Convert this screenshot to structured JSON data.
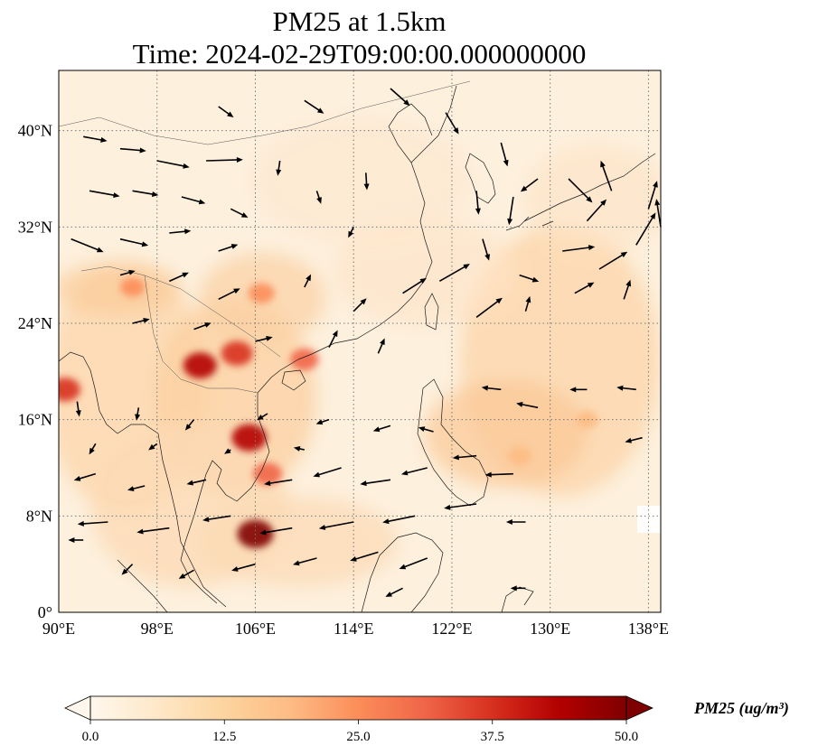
{
  "title": {
    "line1": "PM25 at 1.5km",
    "line2": "Time: 2024-02-29T09:00:00.000000000"
  },
  "map": {
    "projection": "PlateCarree",
    "lon_range": [
      90,
      139
    ],
    "lat_range": [
      0,
      45
    ],
    "grid": "dotted",
    "lon_ticks": [
      {
        "value": 90,
        "label": "90°E"
      },
      {
        "value": 98,
        "label": "98°E"
      },
      {
        "value": 106,
        "label": "106°E"
      },
      {
        "value": 114,
        "label": "114°E"
      },
      {
        "value": 122,
        "label": "122°E"
      },
      {
        "value": 130,
        "label": "130°E"
      },
      {
        "value": 138,
        "label": "138°E"
      }
    ],
    "lat_ticks": [
      {
        "value": 0,
        "label": "0°"
      },
      {
        "value": 8,
        "label": "8°N"
      },
      {
        "value": 16,
        "label": "16°N"
      },
      {
        "value": 24,
        "label": "24°N"
      },
      {
        "value": 32,
        "label": "32°N"
      },
      {
        "value": 40,
        "label": "40°N"
      }
    ],
    "hotspots": [
      {
        "lon": 106,
        "lat": 6.5,
        "level": 48
      },
      {
        "lon": 105.5,
        "lat": 14.5,
        "level": 45
      },
      {
        "lon": 101.5,
        "lat": 20.5,
        "level": 42
      },
      {
        "lon": 104.5,
        "lat": 21.5,
        "level": 38
      },
      {
        "lon": 90.5,
        "lat": 18.5,
        "level": 36
      },
      {
        "lon": 107,
        "lat": 11.5,
        "level": 32
      },
      {
        "lon": 110,
        "lat": 21,
        "level": 30
      },
      {
        "lon": 106.5,
        "lat": 26.5,
        "level": 26
      },
      {
        "lon": 96,
        "lat": 27,
        "level": 22
      },
      {
        "lon": 127.5,
        "lat": 13,
        "level": 20
      },
      {
        "lon": 133,
        "lat": 16,
        "level": 18
      }
    ],
    "wind_vectors": [
      {
        "lon": 92,
        "lat": 39.5,
        "u": 2.2,
        "v": -0.4
      },
      {
        "lon": 95,
        "lat": 38.5,
        "u": 2.4,
        "v": -0.2
      },
      {
        "lon": 98,
        "lat": 37.5,
        "u": 3.0,
        "v": -0.6
      },
      {
        "lon": 102,
        "lat": 37.5,
        "u": 3.4,
        "v": 0.1
      },
      {
        "lon": 92.5,
        "lat": 35,
        "u": 2.8,
        "v": -0.5
      },
      {
        "lon": 96,
        "lat": 35,
        "u": 2.4,
        "v": -0.4
      },
      {
        "lon": 100,
        "lat": 34.5,
        "u": 2.2,
        "v": -0.6
      },
      {
        "lon": 104,
        "lat": 33.5,
        "u": 1.6,
        "v": -0.8
      },
      {
        "lon": 91,
        "lat": 31,
        "u": 3.0,
        "v": -1.2
      },
      {
        "lon": 95,
        "lat": 31,
        "u": 2.6,
        "v": -0.6
      },
      {
        "lon": 99,
        "lat": 31.5,
        "u": 2.0,
        "v": 0.2
      },
      {
        "lon": 103,
        "lat": 30,
        "u": 1.8,
        "v": 0.6
      },
      {
        "lon": 108,
        "lat": 37.5,
        "u": -0.2,
        "v": -1.4
      },
      {
        "lon": 111,
        "lat": 35,
        "u": 0.4,
        "v": -1.2
      },
      {
        "lon": 115,
        "lat": 36.5,
        "u": 0.1,
        "v": -1.6
      },
      {
        "lon": 114,
        "lat": 32,
        "u": -0.5,
        "v": -1.0
      },
      {
        "lon": 103,
        "lat": 42,
        "u": 1.4,
        "v": -1.0
      },
      {
        "lon": 110,
        "lat": 42.5,
        "u": 1.8,
        "v": -1.2
      },
      {
        "lon": 117,
        "lat": 43.5,
        "u": 1.8,
        "v": -1.6
      },
      {
        "lon": 121.5,
        "lat": 41.5,
        "u": 1.2,
        "v": -2.0
      },
      {
        "lon": 126,
        "lat": 39,
        "u": 0.6,
        "v": -2.2
      },
      {
        "lon": 124,
        "lat": 35,
        "u": 0.2,
        "v": -2.2
      },
      {
        "lon": 127,
        "lat": 34.5,
        "u": -0.4,
        "v": -2.6
      },
      {
        "lon": 129,
        "lat": 36,
        "u": -1.6,
        "v": -1.2
      },
      {
        "lon": 124.5,
        "lat": 31,
        "u": 0.6,
        "v": -2.0
      },
      {
        "lon": 127.5,
        "lat": 28,
        "u": 1.8,
        "v": -0.6
      },
      {
        "lon": 131,
        "lat": 30,
        "u": 3.0,
        "v": 0.4
      },
      {
        "lon": 133,
        "lat": 32.5,
        "u": 1.8,
        "v": 2.0
      },
      {
        "lon": 134,
        "lat": 28.5,
        "u": 2.6,
        "v": 1.6
      },
      {
        "lon": 137,
        "lat": 30.5,
        "u": 1.8,
        "v": 3.0
      },
      {
        "lon": 139,
        "lat": 32,
        "u": -0.4,
        "v": 2.6
      },
      {
        "lon": 131.5,
        "lat": 36,
        "u": 2.2,
        "v": -2.2
      },
      {
        "lon": 135,
        "lat": 35,
        "u": -1.0,
        "v": 2.8
      },
      {
        "lon": 138,
        "lat": 33.5,
        "u": 0.8,
        "v": 2.6
      },
      {
        "lon": 95,
        "lat": 28,
        "u": 1.4,
        "v": 0.4
      },
      {
        "lon": 99,
        "lat": 27.5,
        "u": 1.8,
        "v": 0.8
      },
      {
        "lon": 103,
        "lat": 26,
        "u": 2.0,
        "v": 1.0
      },
      {
        "lon": 96,
        "lat": 24,
        "u": 1.6,
        "v": 0.4
      },
      {
        "lon": 101,
        "lat": 23.5,
        "u": 1.6,
        "v": 0.6
      },
      {
        "lon": 110,
        "lat": 27,
        "u": 0.6,
        "v": 1.2
      },
      {
        "lon": 114,
        "lat": 25,
        "u": 1.2,
        "v": 1.2
      },
      {
        "lon": 118,
        "lat": 26.5,
        "u": 2.2,
        "v": 1.4
      },
      {
        "lon": 121,
        "lat": 27.5,
        "u": 2.8,
        "v": 1.6
      },
      {
        "lon": 124,
        "lat": 24.5,
        "u": 2.4,
        "v": 1.8
      },
      {
        "lon": 128,
        "lat": 25,
        "u": 0.4,
        "v": 1.4
      },
      {
        "lon": 132,
        "lat": 26.5,
        "u": 1.8,
        "v": 1.0
      },
      {
        "lon": 136,
        "lat": 26,
        "u": 0.6,
        "v": 1.8
      },
      {
        "lon": 112,
        "lat": 22,
        "u": 0.8,
        "v": 1.6
      },
      {
        "lon": 116,
        "lat": 21.5,
        "u": 0.6,
        "v": 1.4
      },
      {
        "lon": 106,
        "lat": 22.5,
        "u": 1.6,
        "v": 0.4
      },
      {
        "lon": 126,
        "lat": 18.5,
        "u": -1.8,
        "v": 0.2
      },
      {
        "lon": 129,
        "lat": 17,
        "u": -2.0,
        "v": 0.4
      },
      {
        "lon": 133,
        "lat": 18.5,
        "u": -1.6,
        "v": 0
      },
      {
        "lon": 137,
        "lat": 18.5,
        "u": -1.8,
        "v": 0.2
      },
      {
        "lon": 137.5,
        "lat": 14.5,
        "u": -1.6,
        "v": -0.4
      },
      {
        "lon": 124,
        "lat": 13,
        "u": -2.2,
        "v": -0.2
      },
      {
        "lon": 127,
        "lat": 11.5,
        "u": -2.6,
        "v": -0.1
      },
      {
        "lon": 120,
        "lat": 12,
        "u": -2.4,
        "v": -0.6
      },
      {
        "lon": 117,
        "lat": 11,
        "u": -2.8,
        "v": -0.4
      },
      {
        "lon": 113,
        "lat": 12,
        "u": -2.6,
        "v": -0.8
      },
      {
        "lon": 109,
        "lat": 11,
        "u": -2.6,
        "v": -0.4
      },
      {
        "lon": 124,
        "lat": 9,
        "u": -3.0,
        "v": -0.4
      },
      {
        "lon": 119,
        "lat": 8,
        "u": -3.0,
        "v": -0.6
      },
      {
        "lon": 114,
        "lat": 7.5,
        "u": -3.2,
        "v": -0.6
      },
      {
        "lon": 109,
        "lat": 7,
        "u": -3.0,
        "v": -0.5
      },
      {
        "lon": 104,
        "lat": 8,
        "u": -2.6,
        "v": -0.4
      },
      {
        "lon": 99,
        "lat": 7,
        "u": -3.0,
        "v": -0.4
      },
      {
        "lon": 94,
        "lat": 7.5,
        "u": -2.8,
        "v": -0.2
      },
      {
        "lon": 93,
        "lat": 11.5,
        "u": -2.0,
        "v": -0.6
      },
      {
        "lon": 97,
        "lat": 10.5,
        "u": -1.6,
        "v": -0.4
      },
      {
        "lon": 102,
        "lat": 11,
        "u": -1.8,
        "v": -0.4
      },
      {
        "lon": 120,
        "lat": 4.5,
        "u": -2.6,
        "v": -1.0
      },
      {
        "lon": 116,
        "lat": 5,
        "u": -2.6,
        "v": -0.8
      },
      {
        "lon": 111,
        "lat": 4.5,
        "u": -2.2,
        "v": -0.6
      },
      {
        "lon": 106,
        "lat": 4,
        "u": -2.2,
        "v": -0.6
      },
      {
        "lon": 101,
        "lat": 3.5,
        "u": -1.4,
        "v": -0.8
      },
      {
        "lon": 96,
        "lat": 4,
        "u": -1.0,
        "v": -1.0
      },
      {
        "lon": 92,
        "lat": 6,
        "u": -1.4,
        "v": 0
      },
      {
        "lon": 118,
        "lat": 2,
        "u": -1.6,
        "v": -0.8
      },
      {
        "lon": 128,
        "lat": 2,
        "u": -1.4,
        "v": 0
      },
      {
        "lon": 128,
        "lat": 7.5,
        "u": -1.8,
        "v": 0
      },
      {
        "lon": 112,
        "lat": 16,
        "u": -1.2,
        "v": -0.4
      },
      {
        "lon": 117,
        "lat": 15.5,
        "u": -1.6,
        "v": -0.5
      },
      {
        "lon": 120.5,
        "lat": 15,
        "u": -1.4,
        "v": 0.4
      },
      {
        "lon": 107,
        "lat": 16.5,
        "u": -1.0,
        "v": -0.6
      },
      {
        "lon": 101,
        "lat": 16,
        "u": -0.8,
        "v": -1.0
      },
      {
        "lon": 96.5,
        "lat": 17,
        "u": -0.2,
        "v": -1.2
      },
      {
        "lon": 91.5,
        "lat": 17.5,
        "u": 0.2,
        "v": -1.4
      },
      {
        "lon": 93,
        "lat": 14,
        "u": -0.6,
        "v": -1.0
      },
      {
        "lon": 98,
        "lat": 14,
        "u": -0.8,
        "v": -0.6
      },
      {
        "lon": 104,
        "lat": 13.5,
        "u": -0.6,
        "v": -0.4
      },
      {
        "lon": 110,
        "lat": 13.5,
        "u": -1.0,
        "v": 0.2
      }
    ]
  },
  "colorbar": {
    "label": "PM25 (ug/m³)",
    "min": 0,
    "max": 50,
    "ticks": [
      "0.0",
      "12.5",
      "25.0",
      "37.5",
      "50.0"
    ],
    "colormap": "OrRd",
    "colors": [
      "#fff7ec",
      "#fee8c8",
      "#fdd49e",
      "#fdbb84",
      "#fc8d59",
      "#ef6548",
      "#d7301f",
      "#b30000",
      "#7f0000"
    ]
  }
}
